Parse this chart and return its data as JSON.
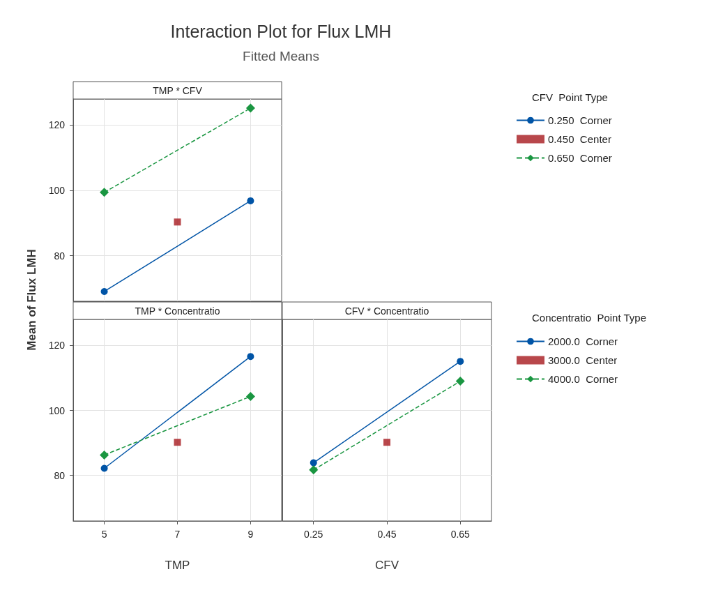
{
  "chart_data": [
    {
      "type": "line",
      "title": "TMP * CFV",
      "subtitle": "Interaction Plot for Flux LMH",
      "annotations": [
        "Fitted Means"
      ],
      "legend_title": "CFV  Point Type",
      "legend": "right",
      "grid": true,
      "tick_labels": "y",
      "xlim": [
        4.15,
        9.85
      ],
      "xticks": [
        5,
        7,
        9
      ],
      "ylim": [
        66,
        128
      ],
      "yticks": [
        80,
        100,
        120
      ],
      "series": [
        {
          "name": "0.250  Corner",
          "type": "line",
          "color": "#0054a6",
          "marker": "circle",
          "line_style": "solid",
          "x": [
            5,
            9
          ],
          "values": [
            69.0,
            96.8
          ]
        },
        {
          "name": "0.450  Center",
          "type": "scatter",
          "color": "#a6191e",
          "marker": "square",
          "x": [
            7
          ],
          "values": [
            90.3
          ]
        },
        {
          "name": "0.650  Corner",
          "type": "line",
          "color": "#1a9641",
          "marker": "diamond",
          "line_style": "dashed",
          "x": [
            5,
            9
          ],
          "values": [
            99.4,
            125.2
          ]
        }
      ]
    },
    {
      "type": "line",
      "title": "TMP * Concentratio",
      "xlabel": "TMP",
      "ylabel": "Mean of Flux LMH",
      "legend": false,
      "grid": true,
      "xlim": [
        4.15,
        9.85
      ],
      "xticks": [
        5,
        7,
        9
      ],
      "ylim": [
        66,
        128
      ],
      "yticks": [
        80,
        100,
        120
      ],
      "series": [
        {
          "type": "line",
          "color": "#0054a6",
          "marker": "circle",
          "line_style": "solid",
          "x": [
            5,
            9
          ],
          "values": [
            82.2,
            116.6
          ]
        },
        {
          "type": "scatter",
          "color": "#a6191e",
          "marker": "square",
          "x": [
            7
          ],
          "values": [
            90.2
          ]
        },
        {
          "type": "line",
          "color": "#1a9641",
          "marker": "diamond",
          "line_style": "dashed",
          "x": [
            5,
            9
          ],
          "values": [
            86.3,
            104.3
          ]
        }
      ]
    },
    {
      "type": "line",
      "title": "CFV * Concentratio",
      "xlabel": "CFV",
      "legend_title": "Concentratio  Point Type",
      "legend": "right",
      "grid": true,
      "tick_labels": "x",
      "xlim": [
        0.165,
        0.735
      ],
      "xticks": [
        0.25,
        0.45,
        0.65
      ],
      "ylim": [
        66,
        128
      ],
      "yticks": [
        80,
        100,
        120
      ],
      "series": [
        {
          "name": "2000.0  Corner",
          "type": "line",
          "color": "#0054a6",
          "marker": "circle",
          "line_style": "solid",
          "x": [
            0.25,
            0.65
          ],
          "values": [
            83.9,
            115.1
          ]
        },
        {
          "name": "3000.0  Center",
          "type": "scatter",
          "color": "#a6191e",
          "marker": "square",
          "x": [
            0.45
          ],
          "values": [
            90.2
          ]
        },
        {
          "name": "4000.0  Corner",
          "type": "line",
          "color": "#1a9641",
          "marker": "diamond",
          "line_style": "dashed",
          "x": [
            0.25,
            0.65
          ],
          "values": [
            81.7,
            109.0
          ]
        }
      ]
    }
  ]
}
